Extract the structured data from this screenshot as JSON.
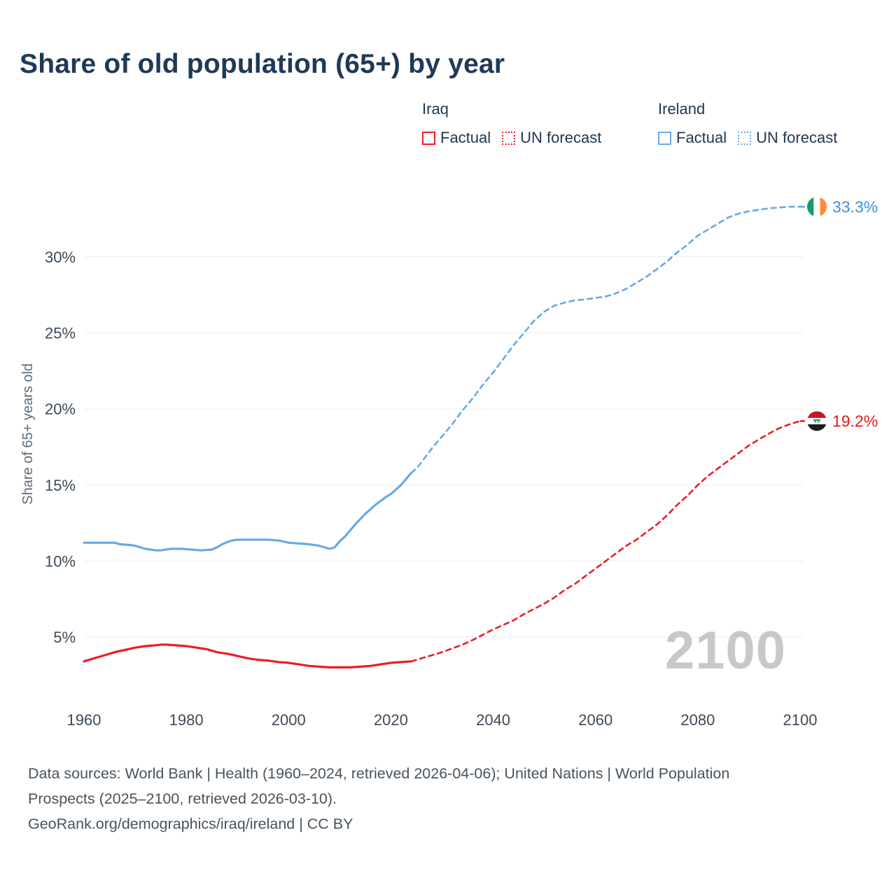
{
  "title": "Share of old population (65+) by year",
  "legend": {
    "groups": [
      {
        "name": "Iraq",
        "factual_label": "Factual",
        "forecast_label": "UN forecast",
        "color": "#ee1c25"
      },
      {
        "name": "Ireland",
        "factual_label": "Factual",
        "forecast_label": "UN forecast",
        "color": "#68a9e6"
      }
    ]
  },
  "watermark": "2100",
  "footer": {
    "sources": "Data sources: World Bank | Health (1960–2024, retrieved 2026-04-06); United Nations | World Population Prospects (2025–2100, retrieved 2026-03-10).",
    "link": "GeoRank.org/demographics/iraq/ireland",
    "license": " | CC BY"
  },
  "chart_data": {
    "type": "line",
    "title": "Share of old population (65+) by year",
    "xlabel": "",
    "ylabel": "Share of 65+ years old",
    "xlim": [
      1960,
      2100
    ],
    "ylim": [
      2,
      34
    ],
    "yticks": [
      5,
      10,
      15,
      20,
      25,
      30
    ],
    "ytick_suffix": "%",
    "xticks": [
      1960,
      1980,
      2000,
      2020,
      2040,
      2060,
      2080,
      2100
    ],
    "grid": "horizontal",
    "legend_position": "top",
    "series": [
      {
        "name": "Ireland Factual",
        "country": "Ireland",
        "kind": "factual",
        "color": "#68a9e6",
        "dashed": false,
        "points": [
          [
            1960,
            11.2
          ],
          [
            1962,
            11.2
          ],
          [
            1964,
            11.2
          ],
          [
            1966,
            11.2
          ],
          [
            1967,
            11.1
          ],
          [
            1969,
            11.05
          ],
          [
            1970,
            11.0
          ],
          [
            1971,
            10.9
          ],
          [
            1972,
            10.8
          ],
          [
            1974,
            10.7
          ],
          [
            1975,
            10.7
          ],
          [
            1977,
            10.8
          ],
          [
            1979,
            10.8
          ],
          [
            1981,
            10.75
          ],
          [
            1983,
            10.7
          ],
          [
            1985,
            10.75
          ],
          [
            1986,
            10.9
          ],
          [
            1987,
            11.1
          ],
          [
            1988,
            11.25
          ],
          [
            1989,
            11.35
          ],
          [
            1990,
            11.4
          ],
          [
            1992,
            11.4
          ],
          [
            1994,
            11.4
          ],
          [
            1996,
            11.4
          ],
          [
            1998,
            11.35
          ],
          [
            2000,
            11.2
          ],
          [
            2002,
            11.15
          ],
          [
            2004,
            11.1
          ],
          [
            2006,
            11.0
          ],
          [
            2007,
            10.9
          ],
          [
            2008,
            10.8
          ],
          [
            2009,
            10.9
          ],
          [
            2010,
            11.3
          ],
          [
            2011,
            11.6
          ],
          [
            2012,
            12.0
          ],
          [
            2013,
            12.4
          ],
          [
            2014,
            12.75
          ],
          [
            2015,
            13.1
          ],
          [
            2016,
            13.4
          ],
          [
            2017,
            13.7
          ],
          [
            2018,
            13.95
          ],
          [
            2019,
            14.2
          ],
          [
            2020,
            14.4
          ],
          [
            2021,
            14.7
          ],
          [
            2022,
            15.0
          ],
          [
            2023,
            15.4
          ],
          [
            2024,
            15.8
          ]
        ]
      },
      {
        "name": "Ireland UN forecast",
        "country": "Ireland",
        "kind": "forecast",
        "color": "#68a9e6",
        "dashed": true,
        "points": [
          [
            2024,
            15.8
          ],
          [
            2025,
            16.1
          ],
          [
            2026,
            16.5
          ],
          [
            2028,
            17.4
          ],
          [
            2030,
            18.2
          ],
          [
            2032,
            19.0
          ],
          [
            2034,
            19.9
          ],
          [
            2036,
            20.7
          ],
          [
            2038,
            21.6
          ],
          [
            2040,
            22.4
          ],
          [
            2042,
            23.3
          ],
          [
            2044,
            24.2
          ],
          [
            2046,
            25.0
          ],
          [
            2048,
            25.8
          ],
          [
            2050,
            26.4
          ],
          [
            2052,
            26.8
          ],
          [
            2054,
            27.0
          ],
          [
            2056,
            27.15
          ],
          [
            2058,
            27.2
          ],
          [
            2060,
            27.3
          ],
          [
            2062,
            27.4
          ],
          [
            2064,
            27.6
          ],
          [
            2066,
            27.9
          ],
          [
            2068,
            28.3
          ],
          [
            2070,
            28.7
          ],
          [
            2072,
            29.2
          ],
          [
            2074,
            29.7
          ],
          [
            2076,
            30.3
          ],
          [
            2078,
            30.8
          ],
          [
            2080,
            31.4
          ],
          [
            2082,
            31.8
          ],
          [
            2084,
            32.2
          ],
          [
            2086,
            32.6
          ],
          [
            2088,
            32.85
          ],
          [
            2090,
            33.0
          ],
          [
            2092,
            33.1
          ],
          [
            2094,
            33.2
          ],
          [
            2096,
            33.25
          ],
          [
            2098,
            33.3
          ],
          [
            2100,
            33.3
          ]
        ]
      },
      {
        "name": "Iraq Factual",
        "country": "Iraq",
        "kind": "factual",
        "color": "#ee1c25",
        "dashed": false,
        "points": [
          [
            1960,
            3.4
          ],
          [
            1962,
            3.6
          ],
          [
            1964,
            3.8
          ],
          [
            1966,
            4.0
          ],
          [
            1968,
            4.15
          ],
          [
            1970,
            4.3
          ],
          [
            1972,
            4.4
          ],
          [
            1974,
            4.45
          ],
          [
            1975,
            4.5
          ],
          [
            1976,
            4.5
          ],
          [
            1978,
            4.45
          ],
          [
            1980,
            4.4
          ],
          [
            1982,
            4.3
          ],
          [
            1984,
            4.2
          ],
          [
            1986,
            4.0
          ],
          [
            1988,
            3.9
          ],
          [
            1990,
            3.75
          ],
          [
            1992,
            3.6
          ],
          [
            1994,
            3.5
          ],
          [
            1996,
            3.45
          ],
          [
            1998,
            3.35
          ],
          [
            2000,
            3.3
          ],
          [
            2002,
            3.2
          ],
          [
            2004,
            3.1
          ],
          [
            2006,
            3.05
          ],
          [
            2008,
            3.0
          ],
          [
            2010,
            3.0
          ],
          [
            2012,
            3.0
          ],
          [
            2014,
            3.05
          ],
          [
            2016,
            3.1
          ],
          [
            2018,
            3.2
          ],
          [
            2020,
            3.3
          ],
          [
            2022,
            3.35
          ],
          [
            2024,
            3.4
          ]
        ]
      },
      {
        "name": "Iraq UN forecast",
        "country": "Iraq",
        "kind": "forecast",
        "color": "#ee1c25",
        "dashed": true,
        "points": [
          [
            2024,
            3.4
          ],
          [
            2026,
            3.6
          ],
          [
            2028,
            3.8
          ],
          [
            2030,
            4.0
          ],
          [
            2032,
            4.25
          ],
          [
            2034,
            4.5
          ],
          [
            2036,
            4.8
          ],
          [
            2038,
            5.15
          ],
          [
            2040,
            5.5
          ],
          [
            2042,
            5.8
          ],
          [
            2044,
            6.1
          ],
          [
            2046,
            6.5
          ],
          [
            2048,
            6.85
          ],
          [
            2050,
            7.2
          ],
          [
            2052,
            7.6
          ],
          [
            2054,
            8.1
          ],
          [
            2056,
            8.5
          ],
          [
            2058,
            9.0
          ],
          [
            2060,
            9.5
          ],
          [
            2062,
            10.0
          ],
          [
            2064,
            10.5
          ],
          [
            2066,
            11.0
          ],
          [
            2068,
            11.4
          ],
          [
            2070,
            11.9
          ],
          [
            2072,
            12.4
          ],
          [
            2074,
            13.0
          ],
          [
            2076,
            13.7
          ],
          [
            2078,
            14.3
          ],
          [
            2080,
            15.0
          ],
          [
            2082,
            15.6
          ],
          [
            2084,
            16.1
          ],
          [
            2086,
            16.6
          ],
          [
            2088,
            17.1
          ],
          [
            2090,
            17.6
          ],
          [
            2092,
            18.0
          ],
          [
            2094,
            18.4
          ],
          [
            2096,
            18.75
          ],
          [
            2098,
            19.0
          ],
          [
            2100,
            19.2
          ]
        ]
      }
    ],
    "end_markers": [
      {
        "country": "Ireland",
        "year": 2100,
        "value": 33.3,
        "label": "33.3%",
        "color": "#68a9e6",
        "label_color": "#3f8fd8",
        "flag": "ireland-flag"
      },
      {
        "country": "Iraq",
        "year": 2100,
        "value": 19.2,
        "label": "19.2%",
        "color": "#ee1c25",
        "label_color": "#e8191c",
        "flag": "iraq-flag"
      }
    ],
    "annotations": [
      {
        "text": "2100",
        "role": "year-watermark"
      }
    ]
  }
}
